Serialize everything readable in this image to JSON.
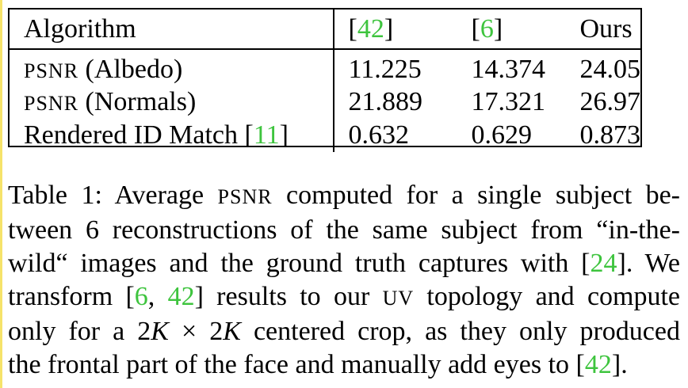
{
  "table": {
    "headers": [
      "Algorithm",
      "[42]",
      "[6]",
      "Ours"
    ],
    "header_cites": {
      "c1": "42",
      "c2": "6"
    },
    "rows": [
      {
        "metric_sc": "PSNR",
        "metric_rest": " (Albedo)",
        "v1": "11.225",
        "v2": "14.374",
        "ours": "24.05"
      },
      {
        "metric_sc": "PSNR",
        "metric_rest": " (Normals)",
        "v1": "21.889",
        "v2": "17.321",
        "ours": "26.97"
      },
      {
        "metric_text": "Rendered ID Match ",
        "metric_cite": "11",
        "v1": "0.632",
        "v2": "0.629",
        "ours": "0.873"
      }
    ]
  },
  "caption": {
    "line1_a": "Table 1: Average ",
    "line1_sc": "PSNR",
    "line1_b": " computed for a single subject be-",
    "line2": "tween 6 reconstructions of the same subject from “in-the-",
    "line3_a": "wild“ images and the ground truth captures with [",
    "line3_cite": "24",
    "line3_b": "]. We",
    "line4_a": "transform [",
    "line4_cite1": "6",
    "line4_sep": ", ",
    "line4_cite2": "42",
    "line4_b": "] results to our ",
    "line4_sc": "UV",
    "line4_c": " topology and compute",
    "line5_a": "only for a 2",
    "line5_k1": "K",
    "line5_x": " × 2",
    "line5_k2": "K",
    "line5_b": " centered crop, as they only produced",
    "line6_a": "the frontal part of the face and manually add eyes to [",
    "line6_cite": "42",
    "line6_b": "]."
  }
}
